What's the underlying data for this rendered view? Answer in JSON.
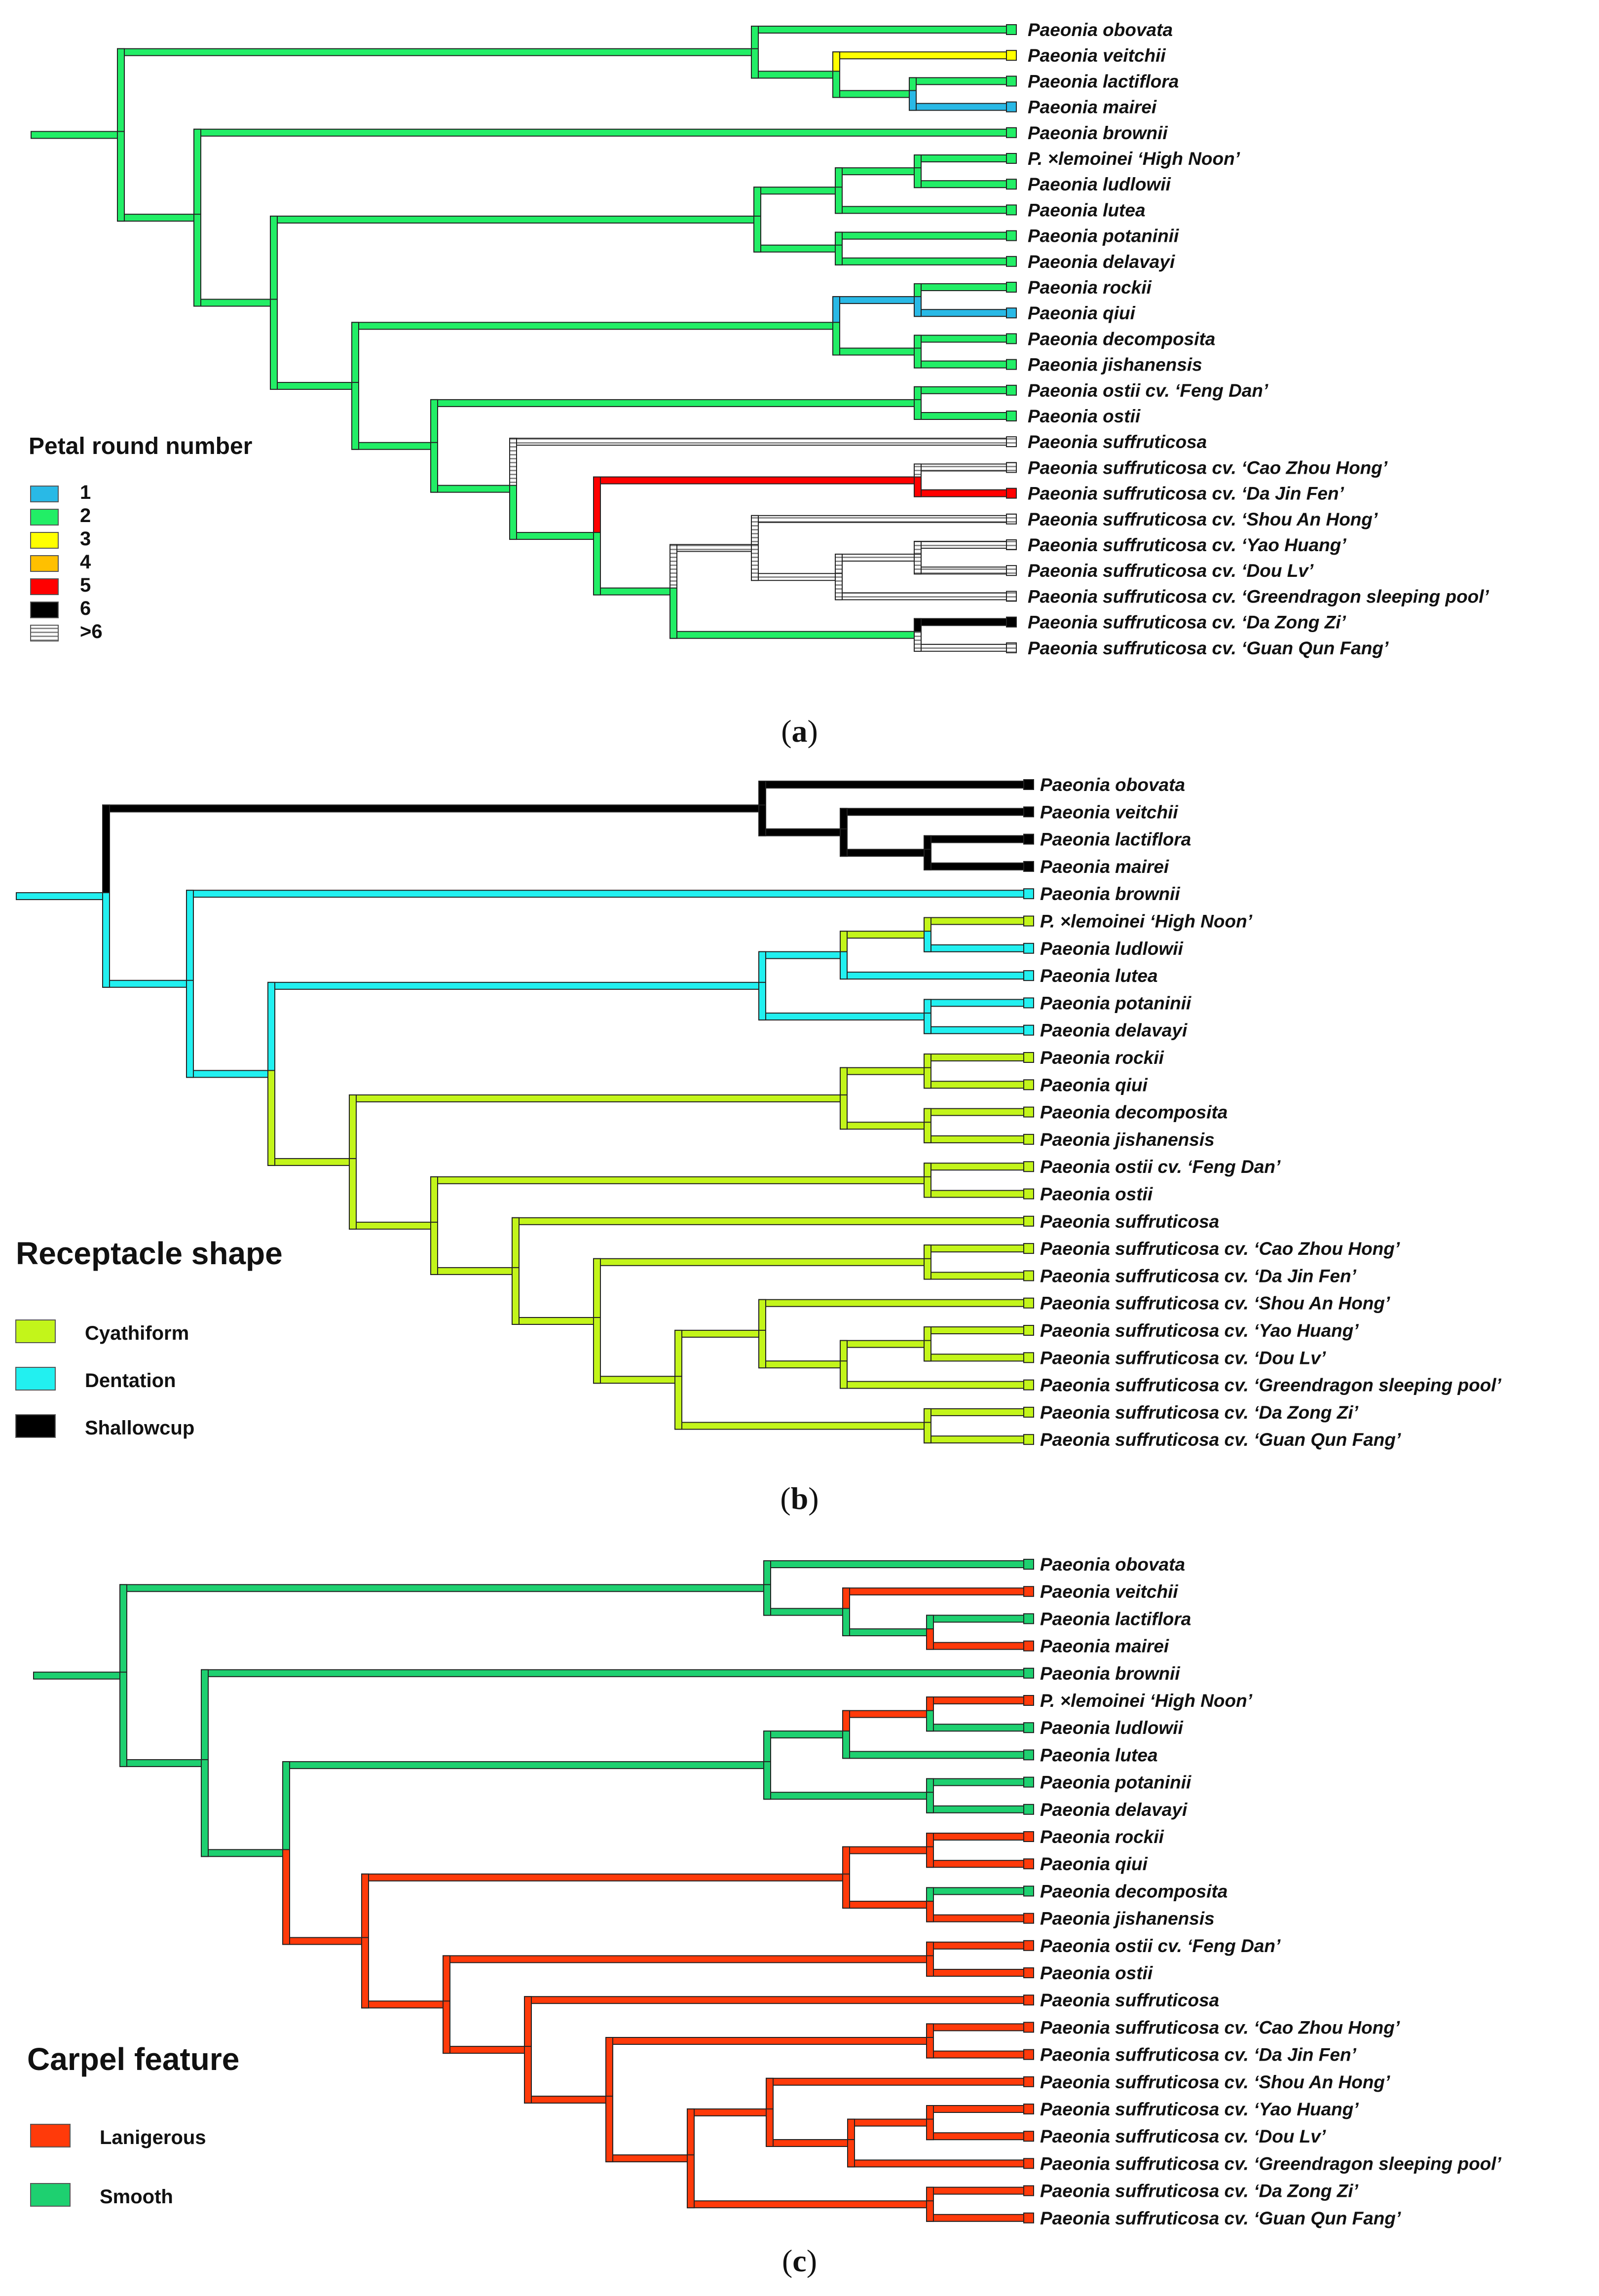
{
  "taxa": [
    "Paeonia obovata",
    "Paeonia veitchii",
    "Paeonia lactiflora",
    "Paeonia mairei",
    "Paeonia brownii",
    "P. ×lemoinei ‘High Noon’",
    "Paeonia ludlowii",
    "Paeonia lutea",
    "Paeonia potaninii",
    "Paeonia delavayi",
    "Paeonia rockii",
    "Paeonia qiui",
    "Paeonia decomposita",
    "Paeonia jishanensis",
    "Paeonia ostii cv. ‘Feng Dan’",
    "Paeonia ostii",
    "Paeonia suffruticosa",
    "Paeonia suffruticosa cv. ‘Cao Zhou Hong’",
    "Paeonia suffruticosa cv. ‘Da Jin Fen’",
    "Paeonia suffruticosa cv. ‘Shou An Hong’",
    "Paeonia suffruticosa cv. ‘Yao Huang’",
    "Paeonia suffruticosa cv. ‘Dou Lv’",
    "Paeonia suffruticosa cv. ‘Greendragon sleeping pool’",
    "Paeonia suffruticosa cv. ‘Da Zong Zi’",
    "Paeonia suffruticosa cv. ‘Guan Qun Fang’"
  ],
  "tree_topology": "(((obovata,((veitchii,(lactiflora,mairei)))),(brownii,((((High Noon,ludlowii),lutea),(potaninii,delavayi)),(((rockii,qiui),(decomposita,jishanensis)),((Feng Dan,ostii),(suffruticosa,((Cao Zhou Hong,Da Jin Fen),(((Shou An Hong,((Yao Huang,Dou Lv),Greendragon sleeping pool))),(Da Zong Zi,Guan Qun Fang)))))))))",
  "panels": [
    {
      "id": "a",
      "caption": "a",
      "legend_title": "Petal round number",
      "legend": [
        {
          "label": "1",
          "color": "#29b9e6",
          "hatched": false
        },
        {
          "label": "2",
          "color": "#22ee66",
          "hatched": false
        },
        {
          "label": "3",
          "color": "#ffff00",
          "hatched": false
        },
        {
          "label": "4",
          "color": "#ffc000",
          "hatched": false
        },
        {
          "label": "5",
          "color": "#ff0000",
          "hatched": false
        },
        {
          "label": "6",
          "color": "#000000",
          "hatched": false
        },
        {
          "label": ">6",
          "color": "#9a9a9a",
          "hatched": true
        }
      ],
      "tip_states": [
        "2",
        "3",
        "2",
        "1",
        "2",
        "2",
        "2",
        "2",
        "2",
        "2",
        "2",
        "1",
        "2",
        "2",
        "2",
        "2",
        ">6",
        ">6",
        "5",
        ">6",
        ">6",
        ">6",
        ">6",
        "6",
        ">6"
      ]
    },
    {
      "id": "b",
      "caption": "b",
      "legend_title": "Receptacle shape",
      "legend": [
        {
          "label": "Cyathiform",
          "color": "#c3f51a",
          "hatched": false
        },
        {
          "label": "Dentation",
          "color": "#22f0f0",
          "hatched": false
        },
        {
          "label": "Shallowcup",
          "color": "#000000",
          "hatched": false
        }
      ],
      "tip_states": [
        "Shallowcup",
        "Shallowcup",
        "Shallowcup",
        "Shallowcup",
        "Dentation",
        "Cyathiform",
        "Dentation",
        "Dentation",
        "Dentation",
        "Dentation",
        "Cyathiform",
        "Cyathiform",
        "Cyathiform",
        "Cyathiform",
        "Cyathiform",
        "Cyathiform",
        "Cyathiform",
        "Cyathiform",
        "Cyathiform",
        "Cyathiform",
        "Cyathiform",
        "Cyathiform",
        "Cyathiform",
        "Cyathiform",
        "Cyathiform"
      ]
    },
    {
      "id": "c",
      "caption": "c",
      "legend_title": "Carpel feature",
      "legend": [
        {
          "label": "Lanigerous",
          "color": "#ff3a0a",
          "hatched": false
        },
        {
          "label": "Smooth",
          "color": "#1ed070",
          "hatched": false
        }
      ],
      "tip_states": [
        "Smooth",
        "Lanigerous",
        "Smooth",
        "Lanigerous",
        "Smooth",
        "Lanigerous",
        "Smooth",
        "Smooth",
        "Smooth",
        "Smooth",
        "Lanigerous",
        "Lanigerous",
        "Smooth",
        "Lanigerous",
        "Lanigerous",
        "Lanigerous",
        "Lanigerous",
        "Lanigerous",
        "Lanigerous",
        "Lanigerous",
        "Lanigerous",
        "Lanigerous",
        "Lanigerous",
        "Lanigerous",
        "Lanigerous"
      ]
    }
  ]
}
